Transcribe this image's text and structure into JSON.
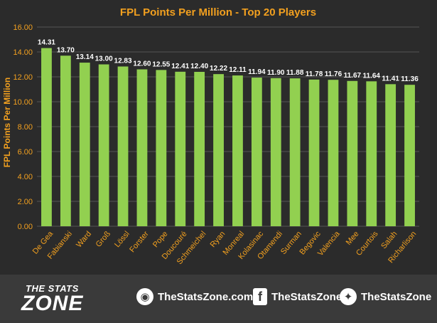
{
  "chart_data": {
    "type": "bar",
    "title": "FPL Points Per Million - Top 20 Players",
    "ylabel": "FPL Points Per Million",
    "xlabel": "",
    "ylim": [
      0,
      16
    ],
    "yticks": [
      "0.00",
      "2.00",
      "4.00",
      "6.00",
      "8.00",
      "10.00",
      "12.00",
      "14.00",
      "16.00"
    ],
    "grid": true,
    "categories": [
      "De Gea",
      "Fabianski",
      "Ward",
      "Groß",
      "Lössl",
      "Forster",
      "Pope",
      "Doucouré",
      "Schmeichel",
      "Ryan",
      "Monreal",
      "Kolasinac",
      "Otamendi",
      "Surman",
      "Begovic",
      "Valencia",
      "Mee",
      "Courtois",
      "Salah",
      "Richarlison"
    ],
    "values": [
      14.31,
      13.7,
      13.14,
      13.0,
      12.83,
      12.6,
      12.55,
      12.41,
      12.4,
      12.22,
      12.11,
      11.94,
      11.9,
      11.88,
      11.78,
      11.76,
      11.67,
      11.64,
      11.41,
      11.36
    ],
    "labels": [
      "14.31",
      "13.70",
      "13.14",
      "13.00",
      "12.83",
      "12.60",
      "12.55",
      "12.41",
      "12.40",
      "12.22",
      "12.11",
      "11.94",
      "11.90",
      "11.88",
      "11.78",
      "11.76",
      "11.67",
      "11.64",
      "11.41",
      "11.36"
    ],
    "colors": {
      "bar": "#92d050",
      "accent": "#f2a01f",
      "text": "#ffffff",
      "grid": "#555555",
      "background": "#2b2b2b"
    }
  },
  "footer": {
    "logo_top": "THE STATS",
    "logo_main": "ZONE",
    "website": "TheStatsZone.com",
    "facebook": "TheStatsZone",
    "twitter": "TheStatsZone",
    "icons": {
      "website": "globe-icon",
      "facebook": "facebook-icon",
      "twitter": "twitter-icon"
    }
  }
}
